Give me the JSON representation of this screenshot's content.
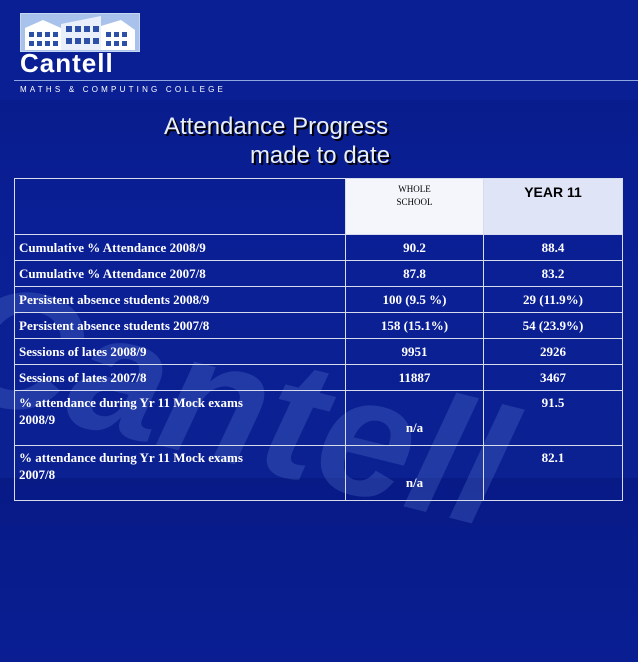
{
  "header": {
    "logo_text": "Cantell",
    "tagline": "MATHS & COMPUTING COLLEGE"
  },
  "watermark_text": "Cantell",
  "slide": {
    "title_line1": "Attendance Progress",
    "title_line2": "made to date"
  },
  "table": {
    "headers": {
      "col1": "",
      "whole_school_line1": "WHOLE",
      "whole_school_line2": "SCHOOL",
      "year11": "YEAR 11"
    },
    "rows": [
      {
        "label": "Cumulative % Attendance 2008/9",
        "whole_school": "90.2",
        "year11": "88.4"
      },
      {
        "label": "Cumulative % Attendance 2007/8",
        "whole_school": "87.8",
        "year11": "83.2"
      },
      {
        "label": "Persistent absence students 2008/9",
        "whole_school": "100 (9.5 %)",
        "year11": "29 (11.9%)"
      },
      {
        "label": "Persistent absence students 2007/8",
        "whole_school": "158 (15.1%)",
        "year11": "54 (23.9%)"
      },
      {
        "label": "Sessions of  lates 2008/9",
        "whole_school": "9951",
        "year11": "2926"
      },
      {
        "label": "Sessions of  lates 2007/8",
        "whole_school": "11887",
        "year11": "3467"
      },
      {
        "label_line1": "% attendance during Yr 11 Mock exams",
        "label_line2": "2008/9",
        "whole_school": "n/a",
        "year11": "91.5"
      },
      {
        "label_line1": "% attendance during Yr 11 Mock exams",
        "label_line2": "2007/8",
        "whole_school": "n/a",
        "year11": "82.1"
      }
    ]
  },
  "colors": {
    "background": "#0a1f93",
    "table_border": "#d6dcec",
    "year11_header_bg": "#dfe5f7",
    "whole_school_header_bg": "#f4f6fb"
  }
}
